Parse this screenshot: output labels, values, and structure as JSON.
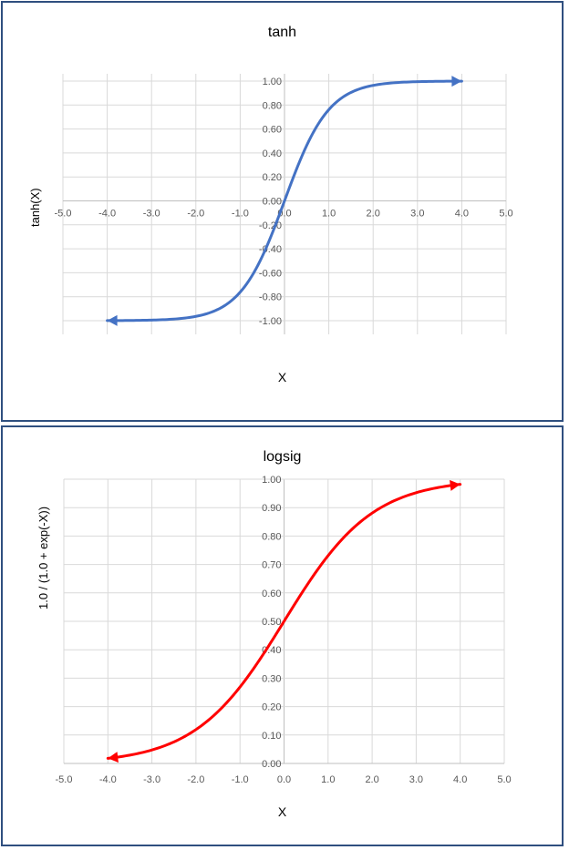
{
  "chart_data": [
    {
      "type": "line",
      "title": "tanh",
      "xlabel": "X",
      "ylabel": "tanh(X)",
      "xlim": [
        -5,
        5
      ],
      "ylim": [
        -1,
        1
      ],
      "x_ticks": [
        "-5.0",
        "-4.0",
        "-3.0",
        "-2.0",
        "-1.0",
        "0.0",
        "1.0",
        "2.0",
        "3.0",
        "4.0",
        "5.0"
      ],
      "y_ticks": [
        "1.00",
        "0.80",
        "0.60",
        "0.40",
        "0.20",
        "0.00",
        "-0.20",
        "-0.40",
        "-0.60",
        "-0.80",
        "-1.00"
      ],
      "grid": true,
      "color": "#4472c4",
      "series": [
        {
          "name": "tanh",
          "x": [
            -4.0,
            -3.5,
            -3.0,
            -2.5,
            -2.0,
            -1.5,
            -1.0,
            -0.75,
            -0.5,
            -0.25,
            0.0,
            0.25,
            0.5,
            0.75,
            1.0,
            1.5,
            2.0,
            2.5,
            3.0,
            3.5,
            4.0
          ],
          "y": [
            -1.0,
            -1.0,
            -1.0,
            -0.99,
            -0.96,
            -0.91,
            -0.76,
            -0.64,
            -0.46,
            -0.24,
            0.0,
            0.24,
            0.46,
            0.64,
            0.76,
            0.91,
            0.96,
            0.99,
            1.0,
            1.0,
            1.0
          ]
        }
      ],
      "arrows": "both-ends",
      "legend": "none"
    },
    {
      "type": "line",
      "title": "logsig",
      "xlabel": "X",
      "ylabel": "1.0 / (1.0 + exp(-X))",
      "xlim": [
        -5,
        5
      ],
      "ylim": [
        0,
        1
      ],
      "x_ticks": [
        "-5.0",
        "-4.0",
        "-3.0",
        "-2.0",
        "-1.0",
        "0.0",
        "1.0",
        "2.0",
        "3.0",
        "4.0",
        "5.0"
      ],
      "y_ticks": [
        "1.00",
        "0.90",
        "0.80",
        "0.70",
        "0.60",
        "0.50",
        "0.40",
        "0.30",
        "0.20",
        "0.10",
        "0.00"
      ],
      "grid": true,
      "color": "#ff0000",
      "series": [
        {
          "name": "logsig",
          "x": [
            -4.0,
            -3.5,
            -3.0,
            -2.5,
            -2.0,
            -1.5,
            -1.0,
            -0.5,
            0.0,
            0.5,
            1.0,
            1.5,
            2.0,
            2.5,
            3.0,
            3.5,
            4.0
          ],
          "y": [
            0.02,
            0.03,
            0.05,
            0.08,
            0.12,
            0.18,
            0.27,
            0.38,
            0.5,
            0.62,
            0.73,
            0.82,
            0.88,
            0.92,
            0.95,
            0.97,
            0.98
          ]
        }
      ],
      "arrows": "both-ends",
      "legend": "none"
    }
  ],
  "charts": {
    "tanh": {
      "title": "tanh",
      "xlabel": "X",
      "ylabel": "tanh(X)"
    },
    "logsig": {
      "title": "logsig",
      "xlabel": "X",
      "ylabel": "1.0 / (1.0 + exp(-X))"
    }
  }
}
